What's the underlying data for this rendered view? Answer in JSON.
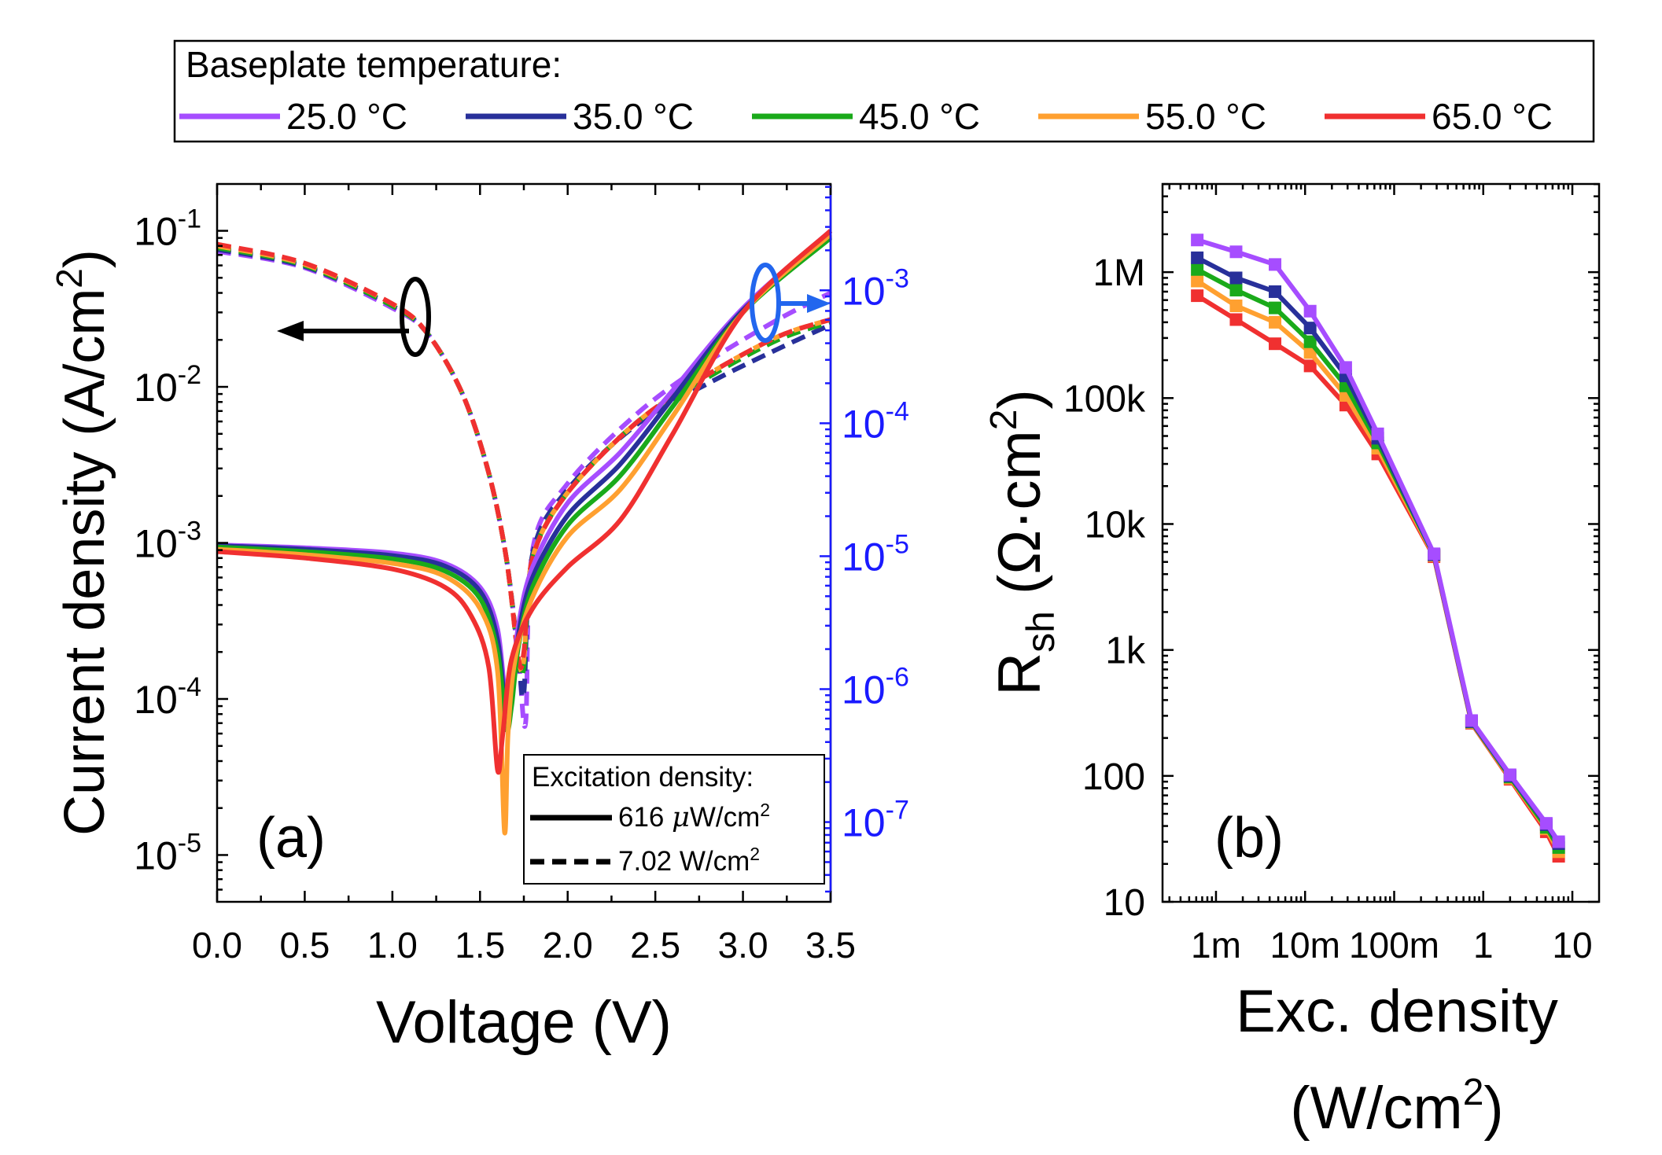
{
  "legend_top": {
    "title": "Baseplate temperature:",
    "entries": [
      {
        "label": "25.0 °C",
        "color": "#a64dff"
      },
      {
        "label": "35.0 °C",
        "color": "#28309a"
      },
      {
        "label": "45.0 °C",
        "color": "#1aaa1a"
      },
      {
        "label": "55.0 °C",
        "color": "#ffa030"
      },
      {
        "label": "65.0 °C",
        "color": "#f03030"
      }
    ]
  },
  "legend_exc": {
    "title": "Excitation density:",
    "solid_value": "616 ",
    "solid_mu": "μ",
    "solid_unit": "W/cm",
    "solid_exp": "2",
    "dashed_value": "7.02 W/cm",
    "dashed_exp": "2"
  },
  "panel_a": {
    "label": "(a)"
  },
  "panel_b": {
    "label": "(b)"
  },
  "axis_colors": {
    "right_axis": "#1a1aff",
    "arrow_right": "#2266ee"
  },
  "chart_data": [
    {
      "type": "line",
      "title": "(a)",
      "xlabel": "Voltage (V)",
      "ylabel_main": "Current density (A/cm",
      "ylabel_exp": "2",
      "ylabel_close": ")",
      "xlim": [
        0.0,
        3.5
      ],
      "ylim_log": [
        -5.3,
        -0.7
      ],
      "y2lim_log": [
        -7.6,
        -2.2
      ],
      "x_ticks": [
        "0.0",
        "0.5",
        "1.0",
        "1.5",
        "2.0",
        "2.5",
        "3.0",
        "3.5"
      ],
      "y_ticks": [
        {
          "base": "10",
          "exp": "-1"
        },
        {
          "base": "10",
          "exp": "-2"
        },
        {
          "base": "10",
          "exp": "-3"
        },
        {
          "base": "10",
          "exp": "-4"
        },
        {
          "base": "10",
          "exp": "-5"
        }
      ],
      "y2_ticks": [
        {
          "base": "10",
          "exp": "-3"
        },
        {
          "base": "10",
          "exp": "-4"
        },
        {
          "base": "10",
          "exp": "-5"
        },
        {
          "base": "10",
          "exp": "-6"
        },
        {
          "base": "10",
          "exp": "-7"
        }
      ],
      "series_solid_616uW": [
        {
          "name": "25.0 °C",
          "x": [
            0,
            0.5,
            1.0,
            1.3,
            1.5,
            1.6,
            1.65,
            1.68,
            1.72,
            1.8,
            2.0,
            2.3,
            2.6,
            3.0,
            3.5
          ],
          "y": [
            0.00097,
            0.00093,
            0.00086,
            0.00074,
            0.00052,
            0.00028,
            9e-05,
            0.00012,
            0.0003,
            0.0007,
            0.0018,
            0.0038,
            0.0095,
            0.032,
            0.1
          ]
        },
        {
          "name": "35.0 °C",
          "x": [
            0,
            0.5,
            1.0,
            1.3,
            1.5,
            1.6,
            1.65,
            1.68,
            1.72,
            1.8,
            2.0,
            2.3,
            2.6,
            3.0,
            3.5
          ],
          "y": [
            0.00096,
            0.00091,
            0.00083,
            0.00071,
            0.00049,
            0.00024,
            7.5e-05,
            0.0001,
            0.00026,
            0.0006,
            0.0015,
            0.0032,
            0.0085,
            0.031,
            0.092
          ]
        },
        {
          "name": "45.0 °C",
          "x": [
            0,
            0.5,
            1.0,
            1.3,
            1.5,
            1.6,
            1.65,
            1.68,
            1.72,
            1.8,
            2.0,
            2.3,
            2.6,
            3.0,
            3.5
          ],
          "y": [
            0.00094,
            0.00088,
            0.00079,
            0.00066,
            0.00044,
            0.0002,
            6.5e-05,
            9e-05,
            0.00022,
            0.00052,
            0.0013,
            0.0027,
            0.0075,
            0.03,
            0.09
          ]
        },
        {
          "name": "55.0 °C",
          "x": [
            0,
            0.5,
            1.0,
            1.3,
            1.5,
            1.6,
            1.64,
            1.66,
            1.7,
            1.8,
            2.0,
            2.3,
            2.6,
            3.0,
            3.5
          ],
          "y": [
            0.00091,
            0.00084,
            0.00074,
            0.00061,
            0.00038,
            0.00015,
            1.4e-05,
            6e-05,
            0.00018,
            0.00045,
            0.0011,
            0.0022,
            0.0065,
            0.03,
            0.095
          ]
        },
        {
          "name": "65.0 °C",
          "x": [
            0,
            0.5,
            1.0,
            1.3,
            1.45,
            1.55,
            1.6,
            1.63,
            1.68,
            1.8,
            2.0,
            2.3,
            2.6,
            3.0,
            3.5
          ],
          "y": [
            0.00088,
            0.0008,
            0.00068,
            0.00052,
            0.00034,
            0.00016,
            3.5e-05,
            6e-05,
            0.00018,
            0.00038,
            0.0007,
            0.0014,
            0.005,
            0.03,
            0.1
          ]
        }
      ],
      "series_dashed_7_02W": [
        {
          "name": "25.0 °C",
          "x": [
            0,
            0.5,
            1.0,
            1.2,
            1.4,
            1.55,
            1.65,
            1.72,
            1.76,
            1.8,
            2.0,
            2.4,
            2.8,
            3.2,
            3.5
          ],
          "y": [
            0.074,
            0.058,
            0.032,
            0.022,
            0.009,
            0.0028,
            0.0008,
            0.00018,
            7e-05,
            0.0009,
            0.0024,
            0.0068,
            0.0145,
            0.027,
            0.04
          ]
        },
        {
          "name": "35.0 °C",
          "x": [
            0,
            0.5,
            1.0,
            1.2,
            1.4,
            1.55,
            1.65,
            1.72,
            1.75,
            1.8,
            2.0,
            2.4,
            2.8,
            3.2,
            3.5
          ],
          "y": [
            0.076,
            0.059,
            0.033,
            0.022,
            0.009,
            0.0028,
            0.0008,
            0.00018,
            0.00011,
            0.00085,
            0.0022,
            0.0058,
            0.0105,
            0.0175,
            0.025
          ]
        },
        {
          "name": "45.0 °C",
          "x": [
            0,
            0.5,
            1.0,
            1.2,
            1.4,
            1.55,
            1.65,
            1.72,
            1.75,
            1.8,
            2.0,
            2.4,
            2.8,
            3.2,
            3.5
          ],
          "y": [
            0.078,
            0.06,
            0.033,
            0.022,
            0.009,
            0.0028,
            0.0008,
            0.00018,
            0.00016,
            0.0008,
            0.0021,
            0.006,
            0.0115,
            0.02,
            0.026
          ]
        },
        {
          "name": "55.0 °C",
          "x": [
            0,
            0.5,
            1.0,
            1.2,
            1.4,
            1.55,
            1.65,
            1.72,
            1.75,
            1.8,
            2.0,
            2.4,
            2.8,
            3.2,
            3.5
          ],
          "y": [
            0.08,
            0.061,
            0.034,
            0.022,
            0.009,
            0.0028,
            0.0008,
            0.00018,
            0.00018,
            0.0008,
            0.0021,
            0.006,
            0.012,
            0.021,
            0.027
          ]
        },
        {
          "name": "65.0 °C",
          "x": [
            0,
            0.5,
            1.0,
            1.2,
            1.4,
            1.55,
            1.65,
            1.72,
            1.75,
            1.8,
            2.0,
            2.4,
            2.8,
            3.2,
            3.5
          ],
          "y": [
            0.082,
            0.062,
            0.034,
            0.022,
            0.009,
            0.0028,
            0.0008,
            0.00018,
            0.0002,
            0.0008,
            0.0021,
            0.006,
            0.012,
            0.021,
            0.027
          ]
        }
      ]
    },
    {
      "type": "line",
      "title": "(b)",
      "xlabel_line1": "Exc. density",
      "xlabel_line2": "(W/cm",
      "xlabel_exp": "2",
      "xlabel_close": ")",
      "ylabel_main": "R",
      "ylabel_sub": "sh",
      "ylabel_unit": " (Ω·cm",
      "ylabel_exp": "2",
      "ylabel_close": ")",
      "xlim_log": [
        -3.6,
        1.3
      ],
      "ylim_log": [
        1.0,
        6.7
      ],
      "x_ticks": [
        "1m",
        "10m",
        "100m",
        "1",
        "10"
      ],
      "y_ticks": [
        "1M",
        "100k",
        "10k",
        "1k",
        "100",
        "10"
      ],
      "x": [
        0.000616,
        0.00168,
        0.0046,
        0.0114,
        0.0286,
        0.0654,
        0.28,
        0.74,
        2.0,
        5.1,
        7.02
      ],
      "series": [
        {
          "name": "25.0 °C",
          "values": [
            1800000,
            1450000,
            1150000,
            490000,
            175000,
            52000,
            5800,
            275,
            102,
            42,
            30
          ]
        },
        {
          "name": "35.0 °C",
          "values": [
            1300000,
            900000,
            700000,
            360000,
            150000,
            48000,
            5700,
            270,
            100,
            41,
            29
          ]
        },
        {
          "name": "45.0 °C",
          "values": [
            1050000,
            720000,
            520000,
            280000,
            125000,
            44000,
            5700,
            268,
            98,
            39,
            27
          ]
        },
        {
          "name": "55.0 °C",
          "values": [
            850000,
            540000,
            400000,
            230000,
            105000,
            40000,
            5600,
            265,
            96,
            38,
            25
          ]
        },
        {
          "name": "65.0 °C",
          "values": [
            650000,
            420000,
            270000,
            180000,
            88000,
            36000,
            5500,
            262,
            94,
            36,
            23
          ]
        }
      ]
    }
  ]
}
